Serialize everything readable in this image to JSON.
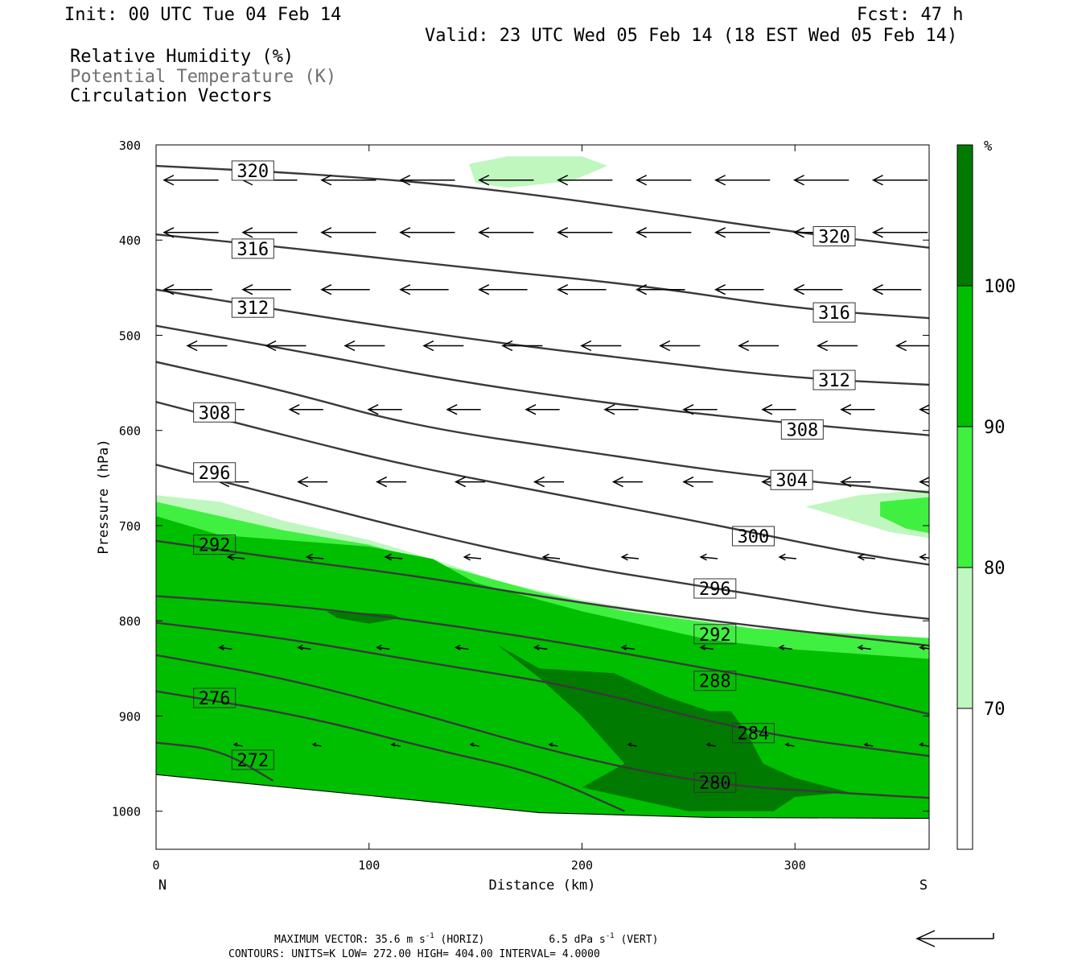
{
  "header": {
    "init": "Init: 00 UTC Tue 04 Feb 14",
    "fcst": "Fcst:   47 h",
    "valid": "Valid: 23 UTC Wed 05 Feb 14 (18 EST Wed 05 Feb 14)"
  },
  "fields": [
    "Relative Humidity (%)",
    "Potential Temperature (K)",
    "Circulation Vectors"
  ],
  "footer": {
    "max_vector_prefix": "MAXIMUM VECTOR:  35.6 m s",
    "max_vector_horiz": "(HORIZ)",
    "max_vector_vert_val": "6.5 dPa s",
    "max_vector_vert": "(VERT)",
    "exp": "-1",
    "contours": "CONTOURS:  UNITS=K  LOW=  272.00       HIGH=  404.00       INTERVAL=    4.0000"
  },
  "colors": {
    "rh70": "#bff7bf",
    "rh80": "#40f040",
    "rh90": "#00bf00",
    "rh100": "#007a00",
    "theta": "#3a3a3a"
  },
  "chart_data": {
    "type": "cross-section",
    "xlabel": "Distance (km)",
    "ylabel": "Pressure (hPa)",
    "xlim": [
      0,
      363
    ],
    "ylim": [
      1040,
      300
    ],
    "x_ticks": [
      0,
      100,
      200,
      300
    ],
    "y_ticks": [
      300,
      400,
      500,
      600,
      700,
      800,
      900,
      1000
    ],
    "left_end_label": "N",
    "right_end_label": "S",
    "colorbar": {
      "unit": "%",
      "levels": [
        70,
        80,
        90,
        100
      ],
      "colors": [
        "#ffffff",
        "#bff7bf",
        "#40f040",
        "#00bf00",
        "#007a00"
      ]
    },
    "surface": [
      [
        0,
        962
      ],
      [
        100,
        984
      ],
      [
        180,
        1002
      ],
      [
        260,
        1007
      ],
      [
        363,
        1008
      ]
    ],
    "rh_regions": [
      {
        "level": 70,
        "points": [
          [
            0,
            668
          ],
          [
            30,
            675
          ],
          [
            60,
            695
          ],
          [
            100,
            715
          ],
          [
            130,
            735
          ],
          [
            160,
            758
          ],
          [
            200,
            778
          ],
          [
            260,
            800
          ],
          [
            300,
            815
          ],
          [
            363,
            825
          ],
          [
            363,
            1008
          ],
          [
            260,
            1007
          ],
          [
            180,
            1002
          ],
          [
            100,
            984
          ],
          [
            0,
            962
          ]
        ]
      },
      {
        "level": 80,
        "points": [
          [
            0,
            675
          ],
          [
            30,
            690
          ],
          [
            60,
            705
          ],
          [
            100,
            720
          ],
          [
            140,
            745
          ],
          [
            180,
            770
          ],
          [
            220,
            790
          ],
          [
            280,
            808
          ],
          [
            363,
            818
          ],
          [
            363,
            1008
          ],
          [
            260,
            1007
          ],
          [
            180,
            1002
          ],
          [
            100,
            984
          ],
          [
            0,
            962
          ]
        ]
      },
      {
        "level": 90,
        "points": [
          [
            0,
            690
          ],
          [
            30,
            710
          ],
          [
            60,
            715
          ],
          [
            100,
            722
          ],
          [
            130,
            735
          ],
          [
            150,
            760
          ],
          [
            200,
            790
          ],
          [
            260,
            820
          ],
          [
            300,
            830
          ],
          [
            363,
            840
          ],
          [
            363,
            1008
          ],
          [
            260,
            1007
          ],
          [
            180,
            1002
          ],
          [
            100,
            984
          ],
          [
            0,
            962
          ]
        ]
      },
      {
        "level": 100,
        "points": [
          [
            160,
            825
          ],
          [
            180,
            850
          ],
          [
            215,
            855
          ],
          [
            240,
            880
          ],
          [
            260,
            895
          ],
          [
            270,
            895
          ],
          [
            278,
            920
          ],
          [
            285,
            950
          ],
          [
            300,
            965
          ],
          [
            325,
            980
          ],
          [
            300,
            985
          ],
          [
            290,
            1000
          ],
          [
            250,
            1000
          ],
          [
            230,
            990
          ],
          [
            200,
            975
          ],
          [
            220,
            950
          ],
          [
            200,
            900
          ],
          [
            180,
            860
          ]
        ]
      },
      {
        "level": 100,
        "points": [
          [
            80,
            790
          ],
          [
            110,
            793
          ],
          [
            115,
            797
          ],
          [
            100,
            803
          ],
          [
            85,
            797
          ]
        ]
      },
      {
        "level": 70,
        "points": [
          [
            147,
            320
          ],
          [
            165,
            312
          ],
          [
            200,
            312
          ],
          [
            212,
            322
          ],
          [
            195,
            338
          ],
          [
            165,
            345
          ],
          [
            150,
            340
          ]
        ]
      },
      {
        "level": 70,
        "points": [
          [
            305,
            680
          ],
          [
            330,
            668
          ],
          [
            363,
            662
          ],
          [
            363,
            713
          ],
          [
            345,
            707
          ],
          [
            330,
            697
          ]
        ]
      },
      {
        "level": 80,
        "points": [
          [
            340,
            675
          ],
          [
            363,
            670
          ],
          [
            363,
            708
          ],
          [
            352,
            703
          ],
          [
            340,
            690
          ]
        ]
      }
    ],
    "theta_contours": [
      {
        "value": 320,
        "points": [
          [
            0,
            322
          ],
          [
            70,
            330
          ],
          [
            140,
            342
          ],
          [
            210,
            362
          ],
          [
            300,
            392
          ],
          [
            363,
            408
          ]
        ]
      },
      {
        "value": 316,
        "points": [
          [
            0,
            394
          ],
          [
            70,
            410
          ],
          [
            150,
            430
          ],
          [
            230,
            448
          ],
          [
            300,
            472
          ],
          [
            363,
            482
          ]
        ]
      },
      {
        "value": 312,
        "points": [
          [
            0,
            452
          ],
          [
            70,
            478
          ],
          [
            150,
            505
          ],
          [
            230,
            527
          ],
          [
            300,
            545
          ],
          [
            363,
            552
          ]
        ]
      },
      {
        "value": 308,
        "points": [
          [
            0,
            490
          ],
          [
            70,
            518
          ],
          [
            140,
            548
          ],
          [
            220,
            574
          ],
          [
            300,
            593
          ],
          [
            363,
            605
          ]
        ]
      },
      {
        "value": 304,
        "points": [
          [
            0,
            528
          ],
          [
            60,
            558
          ],
          [
            120,
            595
          ],
          [
            200,
            622
          ],
          [
            280,
            648
          ],
          [
            363,
            665
          ]
        ]
      },
      {
        "value": 300,
        "points": [
          [
            0,
            570
          ],
          [
            60,
            605
          ],
          [
            120,
            638
          ],
          [
            190,
            668
          ],
          [
            260,
            698
          ],
          [
            330,
            730
          ],
          [
            363,
            741
          ]
        ]
      },
      {
        "value": 296,
        "points": [
          [
            0,
            636
          ],
          [
            60,
            670
          ],
          [
            120,
            705
          ],
          [
            190,
            740
          ],
          [
            260,
            765
          ],
          [
            330,
            790
          ],
          [
            363,
            798
          ]
        ]
      },
      {
        "value": 292,
        "points": [
          [
            0,
            716
          ],
          [
            60,
            735
          ],
          [
            120,
            752
          ],
          [
            190,
            778
          ],
          [
            260,
            800
          ],
          [
            330,
            818
          ],
          [
            363,
            826
          ]
        ]
      },
      {
        "value": 288,
        "points": [
          [
            0,
            774
          ],
          [
            70,
            785
          ],
          [
            140,
            805
          ],
          [
            210,
            830
          ],
          [
            270,
            855
          ],
          [
            320,
            875
          ],
          [
            363,
            898
          ]
        ]
      },
      {
        "value": 284,
        "points": [
          [
            0,
            802
          ],
          [
            60,
            818
          ],
          [
            130,
            845
          ],
          [
            200,
            870
          ],
          [
            280,
            918
          ],
          [
            363,
            942
          ]
        ]
      },
      {
        "value": 280,
        "points": [
          [
            0,
            836
          ],
          [
            60,
            860
          ],
          [
            120,
            895
          ],
          [
            190,
            940
          ],
          [
            260,
            972
          ],
          [
            330,
            982
          ],
          [
            363,
            986
          ]
        ]
      },
      {
        "value": 276,
        "points": [
          [
            0,
            874
          ],
          [
            70,
            900
          ],
          [
            130,
            935
          ],
          [
            180,
            960
          ],
          [
            220,
            1000
          ]
        ]
      },
      {
        "value": 272,
        "points": [
          [
            0,
            928
          ],
          [
            30,
            935
          ],
          [
            55,
            968
          ]
        ]
      }
    ],
    "contour_labels": [
      {
        "value": 320,
        "x": 36,
        "p": 327
      },
      {
        "value": 320,
        "x": 309,
        "p": 396
      },
      {
        "value": 316,
        "x": 36,
        "p": 409
      },
      {
        "value": 316,
        "x": 309,
        "p": 476
      },
      {
        "value": 312,
        "x": 36,
        "p": 471
      },
      {
        "value": 312,
        "x": 309,
        "p": 547
      },
      {
        "value": 308,
        "x": 18,
        "p": 581
      },
      {
        "value": 308,
        "x": 294,
        "p": 599
      },
      {
        "value": 304,
        "x": 289,
        "p": 652
      },
      {
        "value": 300,
        "x": 271,
        "p": 711
      },
      {
        "value": 296,
        "x": 18,
        "p": 644
      },
      {
        "value": 296,
        "x": 253,
        "p": 766
      },
      {
        "value": 292,
        "x": 18,
        "p": 720
      },
      {
        "value": 292,
        "x": 253,
        "p": 814
      },
      {
        "value": 288,
        "x": 253,
        "p": 863
      },
      {
        "value": 284,
        "x": 271,
        "p": 918
      },
      {
        "value": 280,
        "x": 253,
        "p": 970
      },
      {
        "value": 276,
        "x": 18,
        "p": 881
      },
      {
        "value": 272,
        "x": 36,
        "p": 946
      }
    ],
    "vectors": [
      {
        "p": 337,
        "xs": [
          0,
          37,
          74,
          111,
          148,
          185,
          222,
          259,
          296,
          333
        ],
        "len": 26
      },
      {
        "p": 392,
        "xs": [
          0,
          37,
          74,
          111,
          148,
          185,
          222,
          259,
          296,
          333
        ],
        "len": 26
      },
      {
        "p": 452,
        "xs": [
          0,
          37,
          74,
          111,
          148,
          185,
          222,
          259,
          296,
          333
        ],
        "len": 23
      },
      {
        "p": 511,
        "xs": [
          11,
          48,
          85,
          122,
          159,
          196,
          233,
          270,
          307,
          344
        ],
        "len": 19
      },
      {
        "p": 578,
        "xs": [
          22,
          59,
          96,
          133,
          170,
          207,
          244,
          281,
          318,
          355
        ],
        "len": 16
      },
      {
        "p": 654,
        "xs": [
          26,
          63,
          100,
          137,
          174,
          211,
          244,
          281,
          318,
          355
        ],
        "len": 14
      },
      {
        "p": 733,
        "xs": [
          30,
          67,
          104,
          141,
          178,
          215,
          252,
          289,
          326,
          355
        ],
        "len": 8
      },
      {
        "p": 828,
        "xs": [
          26,
          63,
          100,
          137,
          174,
          215,
          252,
          289,
          326,
          355
        ],
        "len": 6
      },
      {
        "p": 930,
        "xs": [
          33,
          70,
          107,
          144,
          181,
          218,
          255,
          292,
          329,
          355
        ],
        "len": 4
      }
    ]
  }
}
